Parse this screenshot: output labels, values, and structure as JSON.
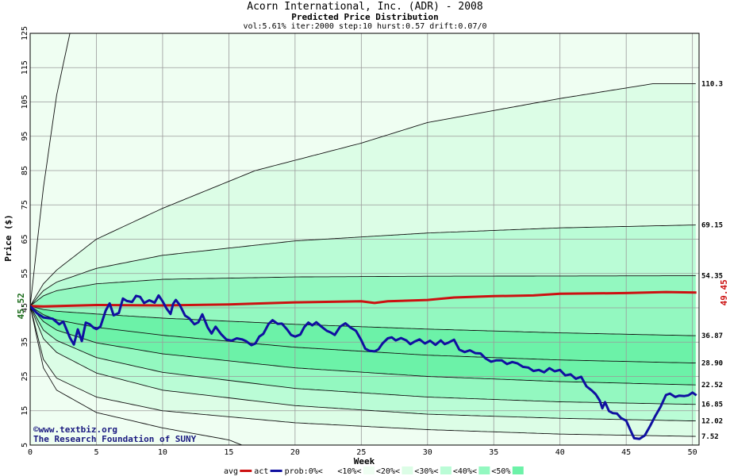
{
  "header": {
    "title": "Acorn International, Inc. (ADR) - 2008",
    "subtitle": "Predicted Price Distribution",
    "params": "vol:5.61% iter:2000 step:10 hurst:0.57 drift:0.07/0"
  },
  "watermark": {
    "line1": "©www.textbiz.org",
    "line2": "The Research Foundation of SUNY"
  },
  "legend": {
    "items": [
      {
        "label": "avg",
        "kind": "line",
        "color": "#cc1111"
      },
      {
        "label": "act",
        "kind": "line",
        "color": "#1010a0"
      },
      {
        "label": "prob:0%<",
        "kind": "none",
        "color": ""
      },
      {
        "label": "<10%<",
        "kind": "swatch",
        "color": "#effef2"
      },
      {
        "label": "<20%<",
        "kind": "swatch",
        "color": "#dcfde6"
      },
      {
        "label": "<30%<",
        "kind": "swatch",
        "color": "#bafcd6"
      },
      {
        "label": "<40%<",
        "kind": "swatch",
        "color": "#93f8c0"
      },
      {
        "label": "<50%",
        "kind": "swatch",
        "color": "#6cf2a8"
      }
    ]
  },
  "colors": {
    "band_0_10": "#effef2",
    "band_10_20": "#dcfde6",
    "band_20_30": "#bafcd6",
    "band_30_40": "#93f8c0",
    "band_40_50": "#6cf2a8",
    "avg_line": "#cc1111",
    "actual_line": "#1010a0",
    "start_label": "#1a6b1a",
    "end_label": "#cc1111"
  },
  "chart_data": {
    "type": "area",
    "xlabel": "Week",
    "ylabel": "Price ($)",
    "xlim": [
      0,
      50.5
    ],
    "ylim": [
      5,
      125
    ],
    "xticks": [
      0,
      5,
      10,
      15,
      20,
      25,
      30,
      35,
      40,
      45,
      50
    ],
    "yticks": [
      5,
      15,
      25,
      35,
      45,
      55,
      65,
      75,
      85,
      95,
      105,
      115,
      125
    ],
    "grid": true,
    "start_price": 45.52,
    "start_price_label": "45.52",
    "end_avg_label": "49.45",
    "percentile_curves": [
      {
        "end_label": "110.3",
        "end_value": 110.3,
        "points": [
          [
            0,
            45.52
          ],
          [
            1,
            52
          ],
          [
            2,
            56
          ],
          [
            5,
            65
          ],
          [
            10,
            74
          ],
          [
            17,
            85
          ],
          [
            25,
            93
          ],
          [
            30,
            99
          ],
          [
            40,
            106
          ],
          [
            47,
            110.3
          ],
          [
            50.3,
            110.3
          ]
        ]
      },
      {
        "end_label": "69.15",
        "end_value": 69.15,
        "points": [
          [
            0,
            45.52
          ],
          [
            1,
            50
          ],
          [
            2,
            52.5
          ],
          [
            5,
            56.5
          ],
          [
            10,
            60.3
          ],
          [
            20,
            64.5
          ],
          [
            30,
            66.8
          ],
          [
            40,
            68.3
          ],
          [
            50.3,
            69.15
          ]
        ]
      },
      {
        "end_label": "54.35",
        "end_value": 54.35,
        "points": [
          [
            0,
            45.52
          ],
          [
            1,
            48.5
          ],
          [
            2,
            50
          ],
          [
            5,
            52
          ],
          [
            10,
            53.3
          ],
          [
            20,
            54
          ],
          [
            30,
            54.2
          ],
          [
            50.3,
            54.35
          ]
        ]
      },
      {
        "end_label": "36.87",
        "end_value": 36.87,
        "points": [
          [
            0,
            45.52
          ],
          [
            1,
            44.5
          ],
          [
            2,
            44
          ],
          [
            5,
            43.2
          ],
          [
            10,
            42
          ],
          [
            20,
            40.2
          ],
          [
            30,
            38.8
          ],
          [
            40,
            37.7
          ],
          [
            50.3,
            36.87
          ]
        ]
      },
      {
        "end_label": "28.90",
        "end_value": 28.9,
        "points": [
          [
            0,
            45.52
          ],
          [
            1,
            43
          ],
          [
            2,
            41.5
          ],
          [
            5,
            39.3
          ],
          [
            10,
            37
          ],
          [
            20,
            33.5
          ],
          [
            30,
            31.2
          ],
          [
            40,
            29.8
          ],
          [
            50.3,
            28.9
          ]
        ]
      },
      {
        "end_label": "22.52",
        "end_value": 22.52,
        "points": [
          [
            0,
            45.52
          ],
          [
            1,
            41
          ],
          [
            2,
            38.5
          ],
          [
            5,
            34.8
          ],
          [
            10,
            31.6
          ],
          [
            20,
            27.5
          ],
          [
            30,
            25
          ],
          [
            40,
            23.5
          ],
          [
            50.3,
            22.52
          ]
        ]
      },
      {
        "end_label": "16.85",
        "end_value": 16.85,
        "points": [
          [
            0,
            45.52
          ],
          [
            1,
            38.5
          ],
          [
            2,
            35.5
          ],
          [
            5,
            30.5
          ],
          [
            10,
            26.2
          ],
          [
            20,
            21.5
          ],
          [
            30,
            19
          ],
          [
            40,
            17.6
          ],
          [
            50.3,
            16.85
          ]
        ]
      },
      {
        "end_label": "12.02",
        "end_value": 12.02,
        "points": [
          [
            0,
            45.52
          ],
          [
            1,
            36
          ],
          [
            2,
            32
          ],
          [
            5,
            26
          ],
          [
            10,
            21
          ],
          [
            20,
            16.5
          ],
          [
            30,
            14
          ],
          [
            40,
            12.8
          ],
          [
            50.3,
            12.02
          ]
        ]
      },
      {
        "end_label": "7.52",
        "end_value": 7.52,
        "points": [
          [
            0,
            45.52
          ],
          [
            1,
            30
          ],
          [
            2,
            24.5
          ],
          [
            5,
            19
          ],
          [
            10,
            15
          ],
          [
            20,
            11.5
          ],
          [
            30,
            9.5
          ],
          [
            40,
            8.2
          ],
          [
            50.3,
            7.52
          ]
        ]
      }
    ],
    "outer_curves": [
      {
        "points": [
          [
            0,
            45.52
          ],
          [
            1,
            80
          ],
          [
            2,
            107
          ],
          [
            3,
            125
          ]
        ]
      },
      {
        "points": [
          [
            0,
            45.52
          ],
          [
            1,
            27.5
          ],
          [
            2,
            21
          ],
          [
            5,
            14.5
          ],
          [
            10,
            10
          ],
          [
            15,
            6.5
          ],
          [
            16,
            5
          ]
        ]
      }
    ],
    "series": [
      {
        "name": "avg",
        "points": [
          [
            0,
            45.52
          ],
          [
            1,
            45.4
          ],
          [
            3,
            45.6
          ],
          [
            5,
            45.8
          ],
          [
            10,
            45.7
          ],
          [
            15,
            46
          ],
          [
            20,
            46.6
          ],
          [
            25,
            46.9
          ],
          [
            26,
            46.4
          ],
          [
            27,
            46.9
          ],
          [
            30,
            47.3
          ],
          [
            32,
            48
          ],
          [
            35,
            48.4
          ],
          [
            38,
            48.6
          ],
          [
            40,
            49.1
          ],
          [
            45,
            49.3
          ],
          [
            48,
            49.6
          ],
          [
            50.3,
            49.45
          ]
        ]
      },
      {
        "name": "act",
        "points": [
          [
            0,
            45.5
          ],
          [
            0.5,
            43.5
          ],
          [
            1,
            42.2
          ],
          [
            1.7,
            41.8
          ],
          [
            2.2,
            40.2
          ],
          [
            2.5,
            41
          ],
          [
            3,
            36.3
          ],
          [
            3.3,
            34.3
          ],
          [
            3.6,
            38.7
          ],
          [
            3.9,
            35.3
          ],
          [
            4.2,
            40.7
          ],
          [
            4.5,
            40.2
          ],
          [
            4.8,
            39.2
          ],
          [
            5,
            38.8
          ],
          [
            5.3,
            39.5
          ],
          [
            5.7,
            44.2
          ],
          [
            6,
            46.3
          ],
          [
            6.3,
            42.8
          ],
          [
            6.7,
            43.5
          ],
          [
            7,
            47.7
          ],
          [
            7.3,
            47
          ],
          [
            7.7,
            46.7
          ],
          [
            8,
            48.5
          ],
          [
            8.3,
            48.2
          ],
          [
            8.6,
            46.4
          ],
          [
            9,
            47.2
          ],
          [
            9.4,
            46.5
          ],
          [
            9.7,
            48.6
          ],
          [
            10,
            46.9
          ],
          [
            10.3,
            44.8
          ],
          [
            10.6,
            43.2
          ],
          [
            10.8,
            46.2
          ],
          [
            11,
            47.3
          ],
          [
            11.3,
            45.8
          ],
          [
            11.7,
            42.7
          ],
          [
            12,
            42
          ],
          [
            12.4,
            40.2
          ],
          [
            12.7,
            40.8
          ],
          [
            13,
            43.1
          ],
          [
            13.4,
            39.3
          ],
          [
            13.7,
            37.5
          ],
          [
            14,
            39.5
          ],
          [
            14.4,
            37.4
          ],
          [
            14.8,
            35.8
          ],
          [
            15.2,
            35.4
          ],
          [
            15.6,
            36.1
          ],
          [
            16,
            35.8
          ],
          [
            16.3,
            35.3
          ],
          [
            16.7,
            34.1
          ],
          [
            17,
            34.6
          ],
          [
            17.3,
            36.6
          ],
          [
            17.6,
            37.4
          ],
          [
            18,
            40.3
          ],
          [
            18.3,
            41.4
          ],
          [
            18.7,
            40.3
          ],
          [
            19,
            40.4
          ],
          [
            19.4,
            38.7
          ],
          [
            19.7,
            37.1
          ],
          [
            20,
            36.6
          ],
          [
            20.4,
            37.2
          ],
          [
            20.7,
            39.4
          ],
          [
            21,
            40.7
          ],
          [
            21.3,
            39.9
          ],
          [
            21.6,
            40.8
          ],
          [
            22,
            39.5
          ],
          [
            22.4,
            38.3
          ],
          [
            22.7,
            37.8
          ],
          [
            23,
            37.1
          ],
          [
            23.4,
            39.5
          ],
          [
            23.8,
            40.5
          ],
          [
            24.2,
            39.2
          ],
          [
            24.6,
            38.3
          ],
          [
            25,
            35.6
          ],
          [
            25.3,
            33.1
          ],
          [
            25.6,
            32.5
          ],
          [
            26,
            32.3
          ],
          [
            26.3,
            32.9
          ],
          [
            26.6,
            34.6
          ],
          [
            27,
            36.1
          ],
          [
            27.3,
            36.4
          ],
          [
            27.6,
            35.5
          ],
          [
            28,
            36.2
          ],
          [
            28.4,
            35.5
          ],
          [
            28.7,
            34.4
          ],
          [
            29,
            35.1
          ],
          [
            29.4,
            35.8
          ],
          [
            29.8,
            34.6
          ],
          [
            30.2,
            35.4
          ],
          [
            30.6,
            34.2
          ],
          [
            31,
            35.5
          ],
          [
            31.3,
            34.4
          ],
          [
            31.6,
            34.9
          ],
          [
            32,
            35.7
          ],
          [
            32.4,
            32.8
          ],
          [
            32.8,
            32.1
          ],
          [
            33.2,
            32.6
          ],
          [
            33.6,
            31.8
          ],
          [
            34,
            31.7
          ],
          [
            34.4,
            30.2
          ],
          [
            34.8,
            29.3
          ],
          [
            35.2,
            29.7
          ],
          [
            35.6,
            29.7
          ],
          [
            36,
            28.6
          ],
          [
            36.4,
            29.2
          ],
          [
            36.8,
            28.8
          ],
          [
            37.2,
            27.8
          ],
          [
            37.6,
            27.6
          ],
          [
            38,
            26.6
          ],
          [
            38.4,
            26.9
          ],
          [
            38.8,
            26.2
          ],
          [
            39.2,
            27.4
          ],
          [
            39.6,
            26.5
          ],
          [
            40,
            26.9
          ],
          [
            40.4,
            25.3
          ],
          [
            40.8,
            25.6
          ],
          [
            41.2,
            24.3
          ],
          [
            41.6,
            24.9
          ],
          [
            42,
            22.1
          ],
          [
            42.4,
            20.9
          ],
          [
            42.7,
            19.8
          ],
          [
            43,
            18
          ],
          [
            43.2,
            15.7
          ],
          [
            43.4,
            17.5
          ],
          [
            43.7,
            14.9
          ],
          [
            44,
            14.3
          ],
          [
            44.3,
            14.2
          ],
          [
            44.6,
            12.9
          ],
          [
            45,
            12.1
          ],
          [
            45.3,
            9.5
          ],
          [
            45.6,
            7
          ],
          [
            46,
            6.8
          ],
          [
            46.4,
            7.8
          ],
          [
            46.8,
            10.5
          ],
          [
            47.2,
            13.5
          ],
          [
            47.6,
            16.2
          ],
          [
            48,
            19.6
          ],
          [
            48.3,
            20
          ],
          [
            48.7,
            19
          ],
          [
            49,
            19.4
          ],
          [
            49.4,
            19.3
          ],
          [
            49.7,
            19.5
          ],
          [
            50,
            20.3
          ],
          [
            50.3,
            19.5
          ]
        ]
      }
    ]
  }
}
